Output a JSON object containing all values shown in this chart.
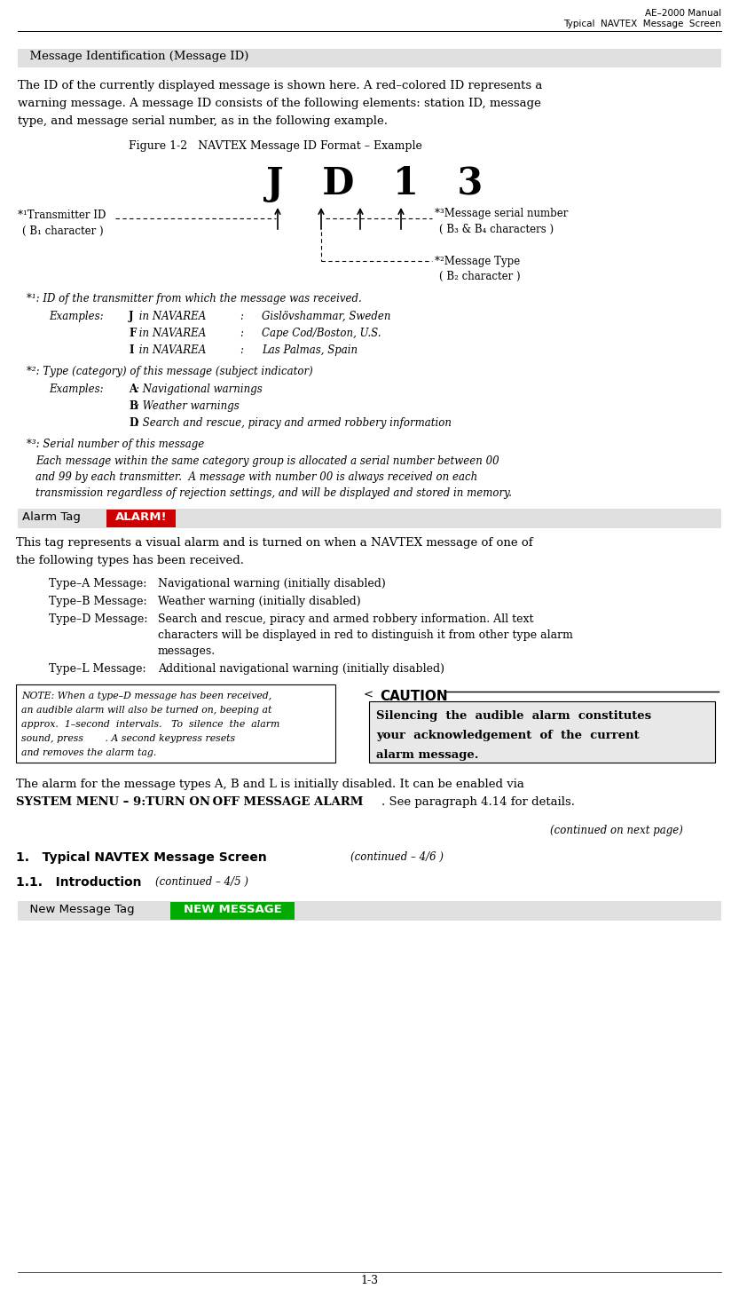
{
  "page_width": 8.33,
  "page_height": 14.61,
  "dpi": 100,
  "bg_color": "#ffffff",
  "header_line1": "AE–2000 Manual",
  "header_line2": "Typical  NAVTEX  Message  Screen",
  "section_bg": "#e0e0e0",
  "alarm_tag_bg": "#cc0000",
  "alarm_tag_fg": "#ffffff",
  "new_msg_bg": "#00aa00",
  "new_msg_fg": "#ffffff",
  "caution_bg": "#e8e8e8",
  "footer": "1-3"
}
